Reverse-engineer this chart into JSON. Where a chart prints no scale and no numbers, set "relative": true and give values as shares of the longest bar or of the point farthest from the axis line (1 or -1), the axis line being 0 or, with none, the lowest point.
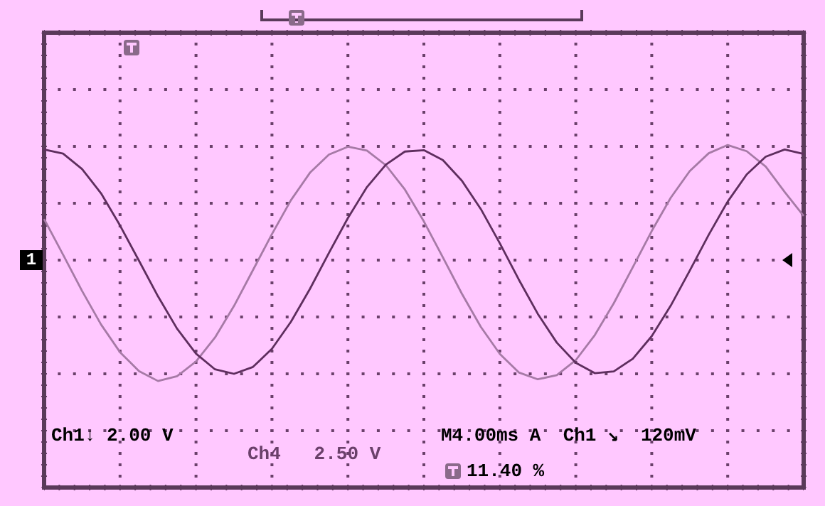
{
  "chart_data": {
    "type": "line",
    "relative": true,
    "grid": true,
    "categories": [
      null,
      null,
      null,
      null,
      null,
      null,
      null,
      null,
      null,
      null,
      null,
      null,
      null,
      null,
      null,
      null,
      null,
      null,
      null,
      null,
      null,
      null,
      null,
      null,
      null,
      null,
      null,
      null,
      null,
      null,
      null,
      null,
      null,
      null,
      null,
      null,
      null,
      null,
      null,
      null,
      null
    ],
    "series": [
      {
        "color": "#5e2e5e",
        "values": [
          0.987,
          0.975,
          0.93,
          0.859,
          0.765,
          0.662,
          0.558,
          0.464,
          0.391,
          0.345,
          0.332,
          0.352,
          0.405,
          0.484,
          0.58,
          0.685,
          0.787,
          0.877,
          0.943,
          0.981,
          0.985,
          0.956,
          0.896,
          0.813,
          0.713,
          0.607,
          0.507,
          0.423,
          0.364,
          0.334,
          0.339,
          0.376,
          0.442,
          0.531,
          0.633,
          0.738,
          0.835,
          0.914,
          0.966,
          0.987,
          0.974
        ]
      },
      {
        "color": "#a67aa6",
        "values": [
          0.784,
          0.68,
          0.574,
          0.476,
          0.395,
          0.34,
          0.311,
          0.325,
          0.368,
          0.438,
          0.53,
          0.635,
          0.74,
          0.839,
          0.919,
          0.972,
          0.995,
          0.984,
          0.941,
          0.87,
          0.777,
          0.672,
          0.566,
          0.469,
          0.39,
          0.336,
          0.316,
          0.328,
          0.372,
          0.445,
          0.538,
          0.643,
          0.749,
          0.846,
          0.924,
          0.976,
          1,
          0.982,
          0.937,
          0.863,
          0.793
        ]
      }
    ],
    "annotations": [
      "1",
      "Ch1↓ 2.00 V",
      "Ch4   2.50 V",
      "M4.00ms A  Ch1 ↘  120mV",
      "11.40 %"
    ]
  }
}
